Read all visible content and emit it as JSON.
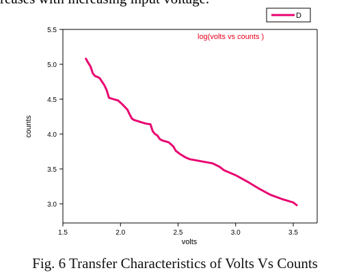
{
  "page": {
    "top_text": "reases with increasing input voltage.",
    "caption": "Fig. 6 Transfer Characteristics of Volts Vs Counts"
  },
  "colors": {
    "series": "#e8006f",
    "annotation": "#e8001c",
    "axis": "#000000"
  },
  "chart_data": {
    "type": "line",
    "title": "",
    "annotation": "log(volts vs counts )",
    "xlabel": "volts",
    "ylabel": "counts",
    "xlim": [
      1.5,
      3.6
    ],
    "ylim": [
      2.85,
      5.5
    ],
    "xticks": [
      "1.5",
      "2.0",
      "2.5",
      "3.0",
      "3.5"
    ],
    "yticks": [
      "3.0",
      "3.5",
      "4.0",
      "4.5",
      "5.0",
      "5.5"
    ],
    "grid": false,
    "legend_position": "top-right",
    "series": [
      {
        "name": "D",
        "x": [
          1.7,
          1.72,
          1.74,
          1.76,
          1.78,
          1.8,
          1.82,
          1.84,
          1.86,
          1.88,
          1.9,
          1.94,
          1.98,
          2.02,
          2.06,
          2.08,
          2.1,
          2.12,
          2.14,
          2.18,
          2.22,
          2.26,
          2.28,
          2.3,
          2.32,
          2.34,
          2.36,
          2.38,
          2.42,
          2.46,
          2.48,
          2.52,
          2.56,
          2.6,
          2.7,
          2.8,
          2.86,
          2.9,
          3.0,
          3.1,
          3.2,
          3.3,
          3.4,
          3.5,
          3.53
        ],
        "y": [
          5.08,
          5.02,
          4.97,
          4.87,
          4.83,
          4.82,
          4.8,
          4.75,
          4.7,
          4.63,
          4.52,
          4.5,
          4.48,
          4.42,
          4.35,
          4.28,
          4.22,
          4.2,
          4.19,
          4.17,
          4.15,
          4.14,
          4.04,
          4.0,
          3.98,
          3.93,
          3.91,
          3.9,
          3.88,
          3.82,
          3.76,
          3.71,
          3.67,
          3.64,
          3.61,
          3.58,
          3.53,
          3.48,
          3.41,
          3.32,
          3.22,
          3.13,
          3.07,
          3.02,
          2.98
        ]
      }
    ]
  }
}
